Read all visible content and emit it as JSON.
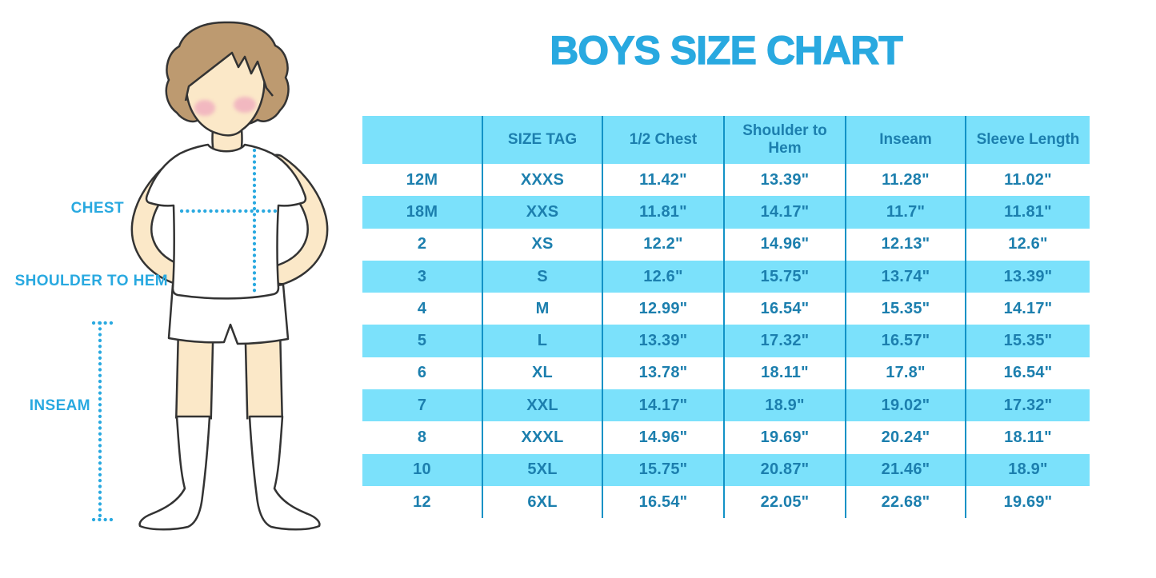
{
  "title": "BOYS SIZE CHART",
  "colors": {
    "accent_blue": "#29A9E0",
    "table_fill_cyan": "#7BE1FB",
    "table_divider_blue": "#1292C6",
    "table_text_teal": "#1C7FAE",
    "skin": "#FBE8C8",
    "hair_brown": "#BD9A70",
    "blush_pink": "#EFA9BE",
    "garment_white": "#FFFFFF",
    "outline_dark": "#333333"
  },
  "diagram": {
    "figure": "boy wearing white t-shirt, shorts and knee socks with dotted measurement guides",
    "labels": {
      "chest": "CHEST",
      "shoulder_to_hem": "SHOULDER TO HEM",
      "inseam": "INSEAM"
    }
  },
  "chart_data": {
    "type": "table",
    "title": "BOYS SIZE CHART",
    "columns": [
      "",
      "SIZE TAG",
      "1/2 Chest",
      "Shoulder to Hem",
      "Inseam",
      "Sleeve Length"
    ],
    "rows": [
      [
        "12M",
        "XXXS",
        "11.42\"",
        "13.39\"",
        "11.28\"",
        "11.02\""
      ],
      [
        "18M",
        "XXS",
        "11.81\"",
        "14.17\"",
        "11.7\"",
        "11.81\""
      ],
      [
        "2",
        "XS",
        "12.2\"",
        "14.96\"",
        "12.13\"",
        "12.6\""
      ],
      [
        "3",
        "S",
        "12.6\"",
        "15.75\"",
        "13.74\"",
        "13.39\""
      ],
      [
        "4",
        "M",
        "12.99\"",
        "16.54\"",
        "15.35\"",
        "14.17\""
      ],
      [
        "5",
        "L",
        "13.39\"",
        "17.32\"",
        "16.57\"",
        "15.35\""
      ],
      [
        "6",
        "XL",
        "13.78\"",
        "18.11\"",
        "17.8\"",
        "16.54\""
      ],
      [
        "7",
        "XXL",
        "14.17\"",
        "18.9\"",
        "19.02\"",
        "17.32\""
      ],
      [
        "8",
        "XXXL",
        "14.96\"",
        "19.69\"",
        "20.24\"",
        "18.11\""
      ],
      [
        "10",
        "5XL",
        "15.75\"",
        "20.87\"",
        "21.46\"",
        "18.9\""
      ],
      [
        "12",
        "6XL",
        "16.54\"",
        "22.05\"",
        "22.68\"",
        "19.69\""
      ]
    ],
    "layout_hints": {
      "header_background": "cyan",
      "row_striping": "white / cyan alternating starting white",
      "grid": "vertical dividers only"
    }
  }
}
